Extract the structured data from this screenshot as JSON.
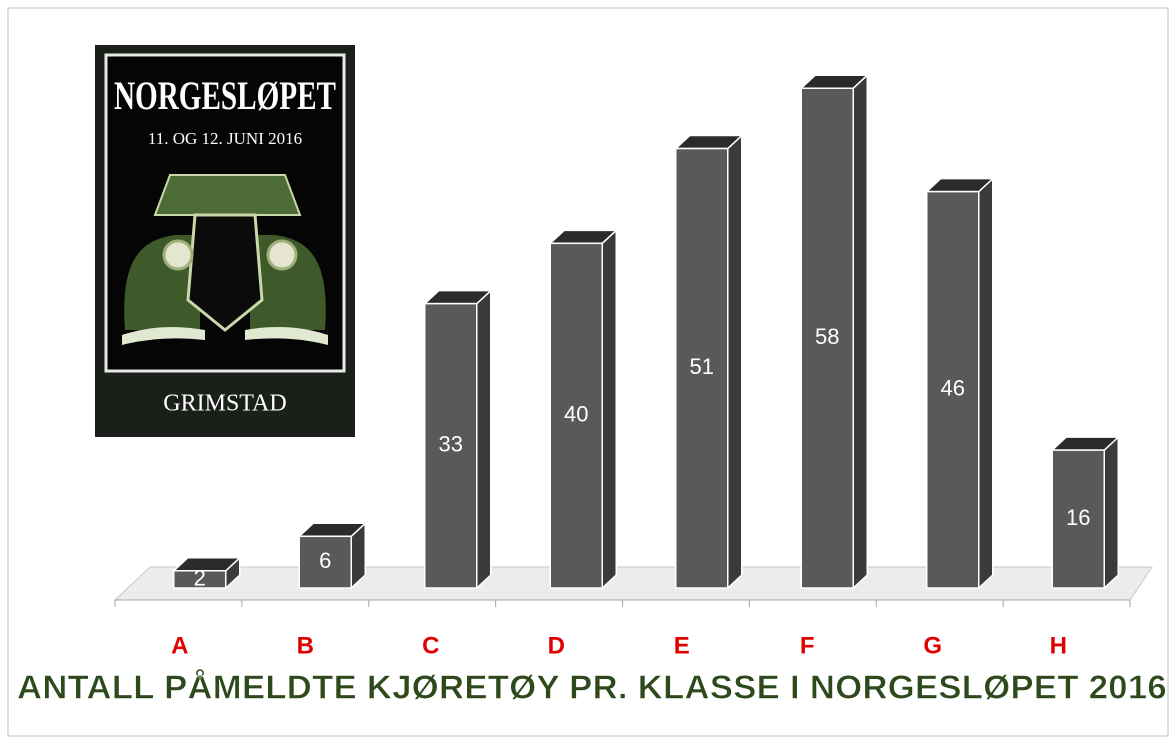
{
  "chart_data": {
    "type": "bar",
    "title": "ANTALL PÅMELDTE KJØRETØY PR. KLASSE I NORGESLØPET 2016",
    "categories": [
      "A",
      "B",
      "C",
      "D",
      "E",
      "F",
      "G",
      "H"
    ],
    "values": [
      2,
      6,
      33,
      40,
      51,
      58,
      46,
      16
    ],
    "color": "#595959",
    "ylim": [
      0,
      60
    ]
  },
  "poster": {
    "title": "NORGESLØPET",
    "date": "11. OG 12. JUNI 2016",
    "place": "GRIMSTAD"
  }
}
